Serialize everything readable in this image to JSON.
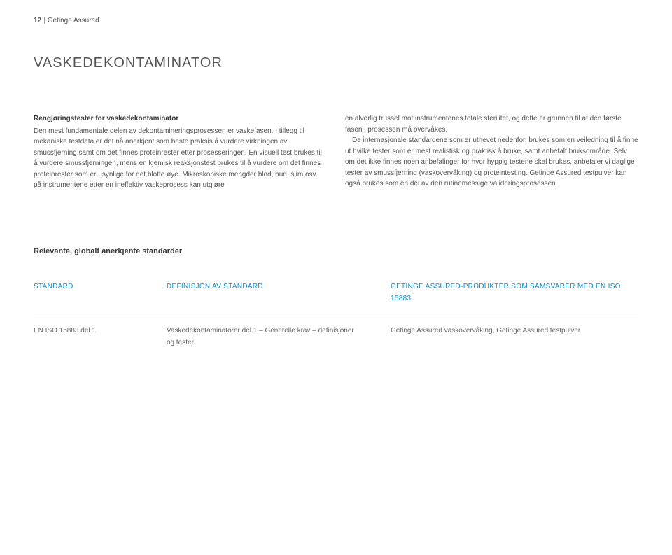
{
  "header": {
    "page_number": "12",
    "brand": "Getinge Assured"
  },
  "title": "VASKEDEKONTAMINATOR",
  "body": {
    "left": {
      "subheading": "Rengjøringstester for vaskedekontaminator",
      "p1": "Den mest fundamentale delen av dekontamineringsprosessen er vaskefasen. I tillegg til mekaniske testdata er det nå anerkjent som beste praksis å vurdere virkningen av smussfjerning samt om det finnes proteinrester etter prosesseringen. En visuell test brukes til å vurdere smussfjerningen, mens en kjemisk reaksjonstest brukes til å vurdere om det finnes proteinrester som er usynlige for det blotte øye. Mikroskopiske mengder blod, hud, slim osv. på instrumentene etter en ineffektiv vaskeprosess kan utgjøre"
    },
    "right": {
      "p1": "en alvorlig trussel mot instrumentenes totale sterilitet, og dette er grunnen til at den første fasen i prosessen må overvåkes.",
      "p2": "De internasjonale standardene som er uthevet nedenfor, brukes som en veiledning til å finne ut hvilke tester som er mest realistisk og praktisk å bruke, samt anbefalt bruksområde. Selv om det ikke finnes noen anbefalinger for hvor hyppig testene skal brukes, anbefaler vi daglige tester av smussfjerning (vaskovervåking) og proteintesting. Getinge Assured testpulver kan også brukes som en del av den rutinemessige valideringsprosessen."
    }
  },
  "standards": {
    "heading": "Relevante, globalt anerkjente standarder",
    "columns": {
      "c1": "STANDARD",
      "c2": "DEFINISJON AV STANDARD",
      "c3": "GETINGE ASSURED-PRODUKTER SOM SAMSVARER MED EN ISO 15883"
    },
    "rows": [
      {
        "c1": "EN ISO 15883 del 1",
        "c2": "Vaskedekontaminatorer del 1 – Generelle krav – definisjoner og tester.",
        "c3": "Getinge Assured vaskovervåking, Getinge Assured testpulver."
      }
    ]
  },
  "colors": {
    "text_primary": "#555555",
    "text_heading": "#3a3a3a",
    "accent_blue": "#0d8fcc",
    "rule": "#d6d6d6",
    "background": "#ffffff"
  }
}
